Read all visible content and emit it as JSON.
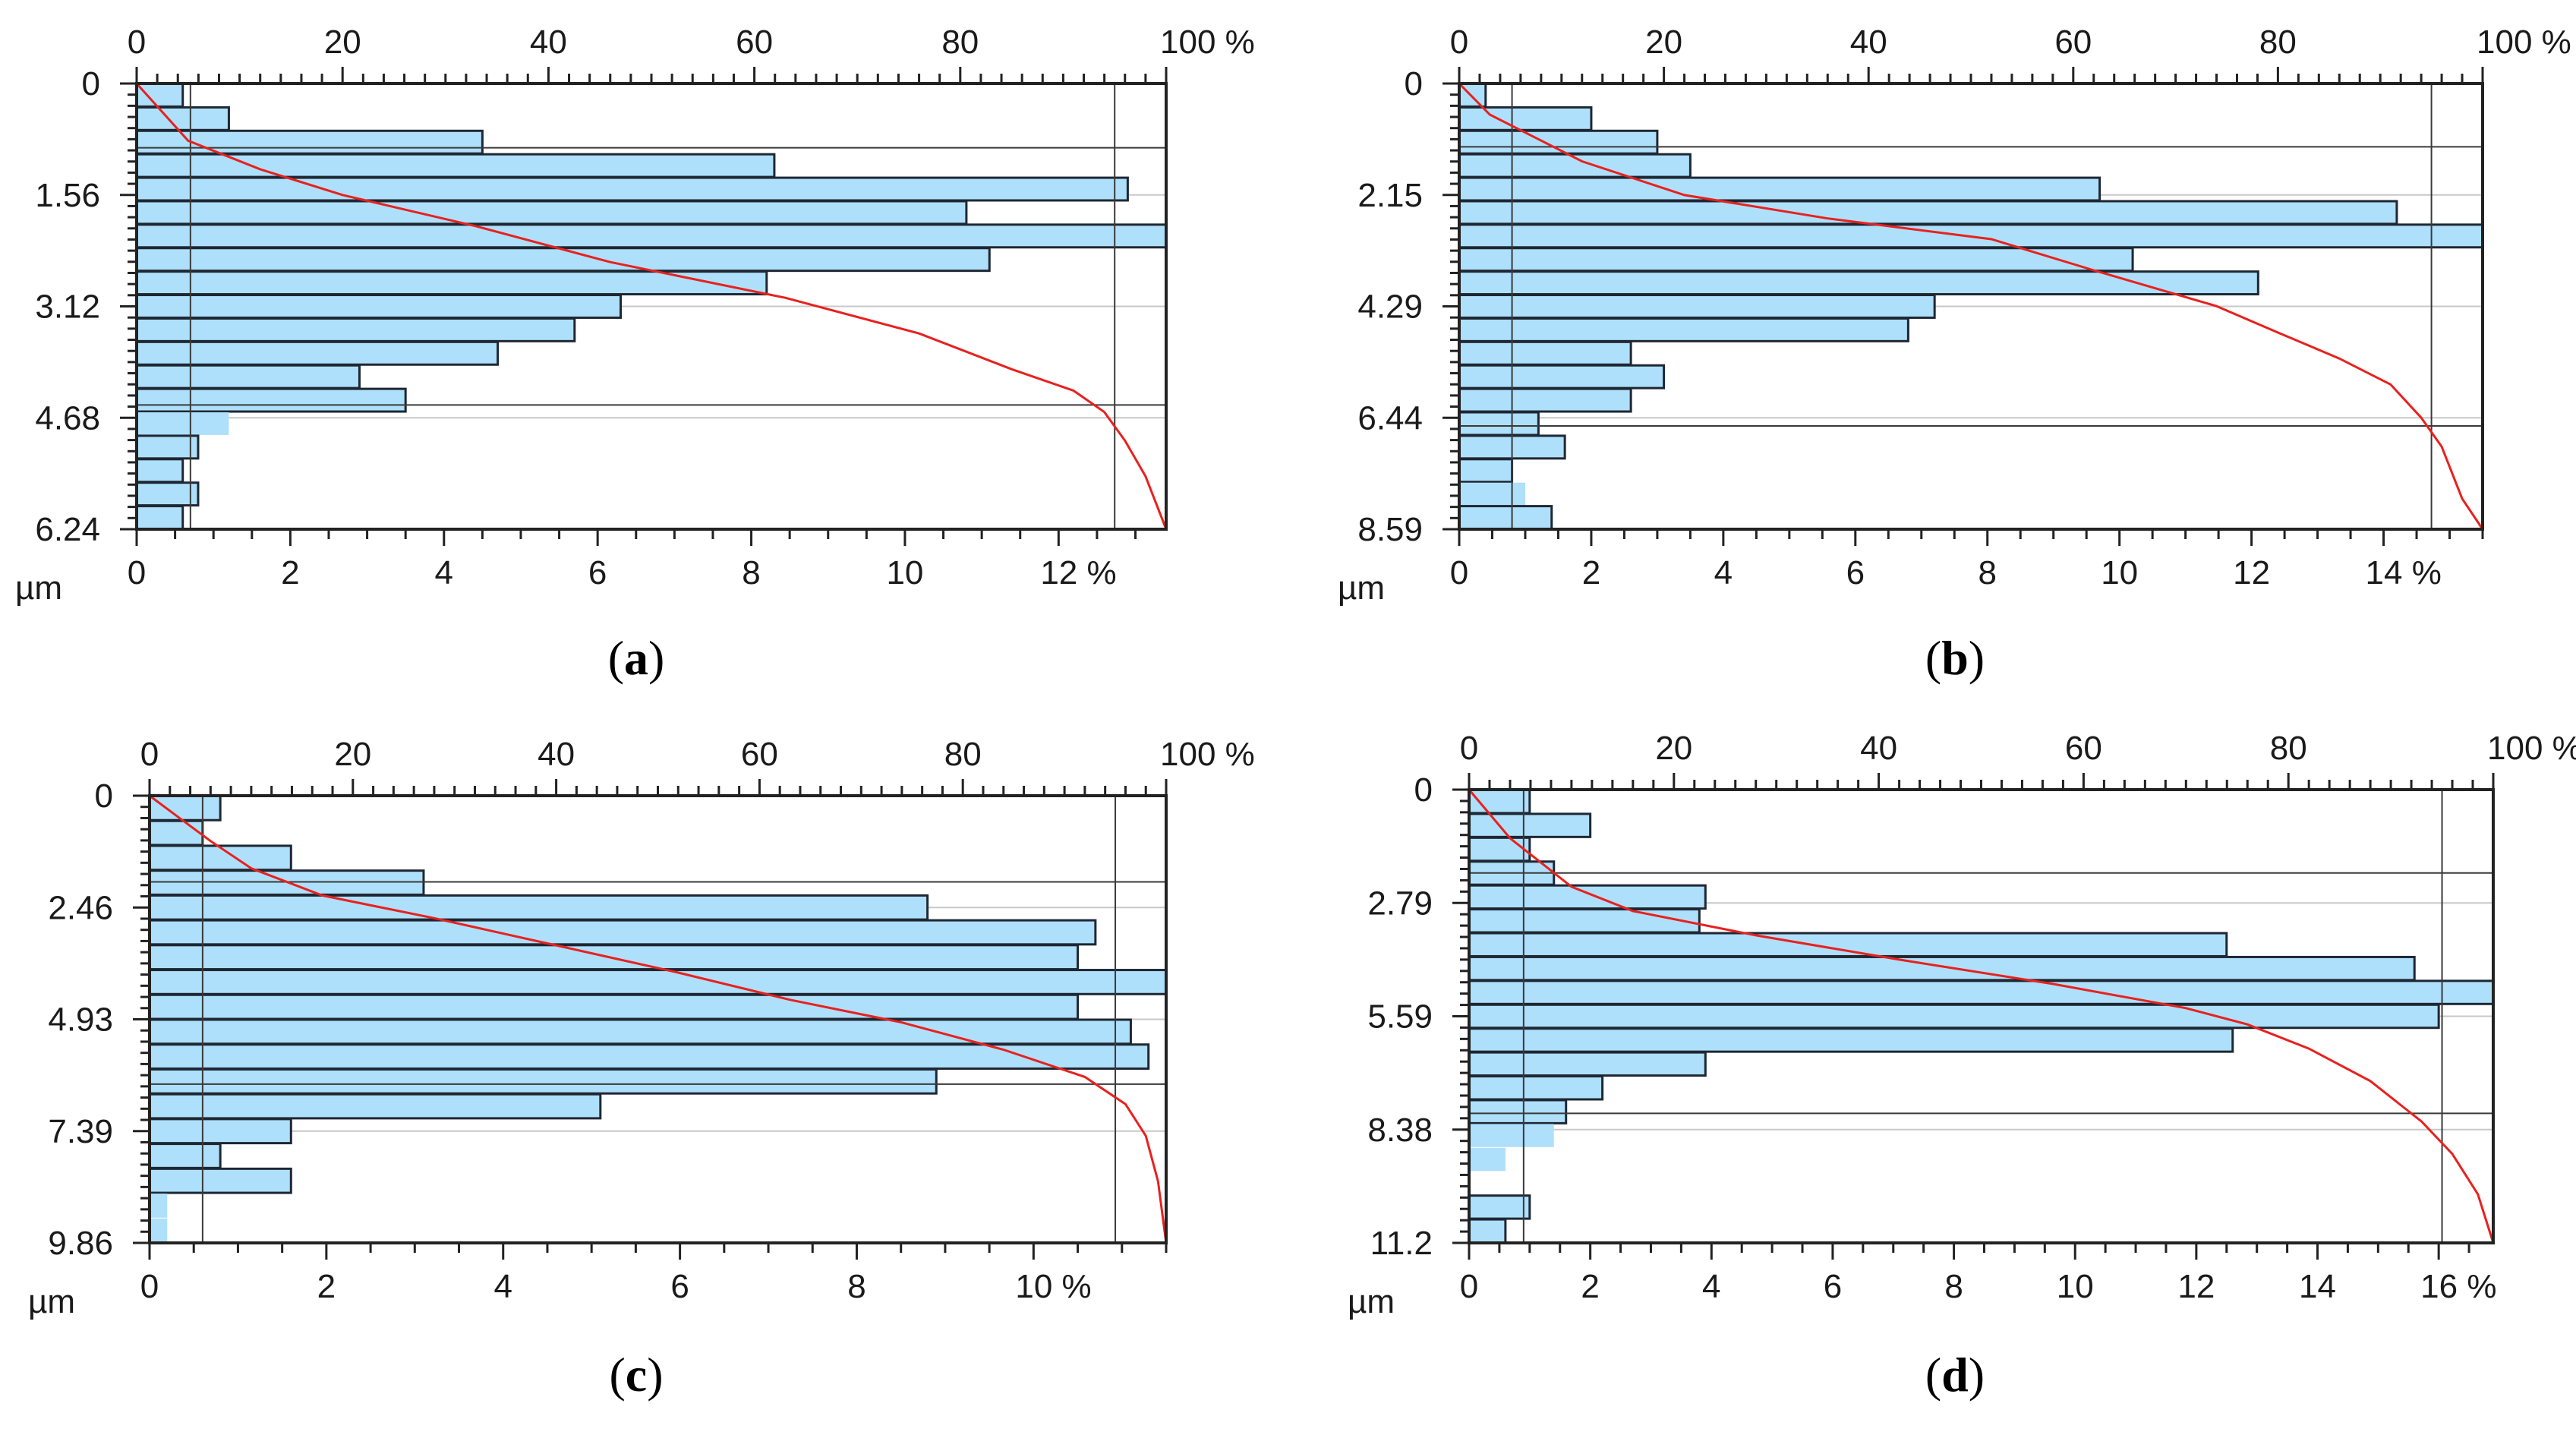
{
  "colors": {
    "bar_fill": "#aee0fb",
    "bar_stroke": "#1f2733",
    "curve": "#e8211e",
    "frame": "#222222",
    "grid": "#c8c8c8"
  },
  "chart_data": [
    {
      "caption_letter": "a",
      "type": "bar",
      "orientation": "horizontal",
      "y_unit": "µm",
      "y_ticks": [
        "0",
        "1.56",
        "3.12",
        "4.68",
        "6.24"
      ],
      "y_range": [
        0,
        6.24
      ],
      "x_tick_labels": [
        "0",
        "2",
        "4",
        "6",
        "8",
        "10",
        "12 %"
      ],
      "x_max": 13.4,
      "top_tick_labels": [
        "0",
        "20",
        "40",
        "60",
        "80",
        "100 %"
      ],
      "values": [
        0.6,
        1.2,
        4.5,
        8.3,
        12.9,
        10.8,
        13.4,
        11.1,
        8.2,
        6.3,
        5.7,
        4.7,
        2.9,
        3.5,
        1.2,
        0.8,
        0.6,
        0.8,
        0.6
      ],
      "light_bars": [
        14
      ],
      "h_lines": [
        0.9,
        4.5
      ],
      "v_line_bottom": 0.7,
      "v_line_top_pct": 95,
      "cumulative": [
        [
          0,
          0
        ],
        [
          0.8,
          5
        ],
        [
          1.2,
          12
        ],
        [
          1.56,
          20
        ],
        [
          2.0,
          33
        ],
        [
          2.5,
          46
        ],
        [
          3.0,
          63
        ],
        [
          3.5,
          76
        ],
        [
          4.0,
          85
        ],
        [
          4.3,
          91
        ],
        [
          4.6,
          94
        ],
        [
          5.0,
          96
        ],
        [
          5.5,
          98
        ],
        [
          6.24,
          100
        ]
      ]
    },
    {
      "caption_letter": "b",
      "type": "bar",
      "orientation": "horizontal",
      "y_unit": "µm",
      "y_ticks": [
        "0",
        "2.15",
        "4.29",
        "6.44",
        "8.59"
      ],
      "y_range": [
        0,
        8.59
      ],
      "x_tick_labels": [
        "0",
        "2",
        "4",
        "6",
        "8",
        "10",
        "12",
        "14 %"
      ],
      "x_max": 15.5,
      "top_tick_labels": [
        "0",
        "20",
        "40",
        "60",
        "80",
        "100 %"
      ],
      "values": [
        0.4,
        2.0,
        3.0,
        3.5,
        9.7,
        14.2,
        15.5,
        10.2,
        12.1,
        7.2,
        6.8,
        2.6,
        3.1,
        2.6,
        1.2,
        1.6,
        0.8,
        1.0,
        1.4
      ],
      "light_bars": [
        17
      ],
      "h_lines": [
        1.22,
        6.6
      ],
      "v_line_bottom": 0.8,
      "v_line_top_pct": 95,
      "cumulative": [
        [
          0,
          0
        ],
        [
          0.6,
          3
        ],
        [
          1.0,
          7
        ],
        [
          1.5,
          12
        ],
        [
          2.15,
          22
        ],
        [
          2.6,
          36
        ],
        [
          3.0,
          52
        ],
        [
          3.6,
          62
        ],
        [
          4.29,
          74
        ],
        [
          4.8,
          80
        ],
        [
          5.3,
          86
        ],
        [
          5.8,
          91
        ],
        [
          6.44,
          94
        ],
        [
          7.0,
          96
        ],
        [
          8.0,
          98
        ],
        [
          8.59,
          100
        ]
      ]
    },
    {
      "caption_letter": "c",
      "type": "bar",
      "orientation": "horizontal",
      "y_unit": "µm",
      "y_ticks": [
        "0",
        "2.46",
        "4.93",
        "7.39",
        "9.86"
      ],
      "y_range": [
        0,
        9.86
      ],
      "x_tick_labels": [
        "0",
        "2",
        "4",
        "6",
        "8",
        "10 %"
      ],
      "x_max": 11.5,
      "top_tick_labels": [
        "0",
        "20",
        "40",
        "60",
        "80",
        "100 %"
      ],
      "values": [
        0.8,
        0.6,
        1.6,
        3.1,
        8.8,
        10.7,
        10.5,
        11.5,
        10.5,
        11.1,
        11.3,
        8.9,
        5.1,
        1.6,
        0.8,
        1.6,
        0.2,
        0.2
      ],
      "light_bars": [
        16,
        17
      ],
      "h_lines": [
        1.9,
        6.36
      ],
      "v_line_bottom": 0.6,
      "v_line_top_pct": 95,
      "cumulative": [
        [
          0,
          0
        ],
        [
          0.5,
          3
        ],
        [
          1.0,
          6
        ],
        [
          1.6,
          10
        ],
        [
          2.2,
          17
        ],
        [
          2.7,
          28
        ],
        [
          3.3,
          40
        ],
        [
          3.9,
          52
        ],
        [
          4.5,
          63
        ],
        [
          5.0,
          74
        ],
        [
          5.6,
          84
        ],
        [
          6.2,
          92
        ],
        [
          6.8,
          96
        ],
        [
          7.5,
          98
        ],
        [
          8.5,
          99.2
        ],
        [
          9.86,
          100
        ]
      ]
    },
    {
      "caption_letter": "d",
      "type": "bar",
      "orientation": "horizontal",
      "y_unit": "µm",
      "y_ticks": [
        "0",
        "2.79",
        "5.59",
        "8.38",
        "11.2"
      ],
      "y_range": [
        0,
        11.2
      ],
      "x_tick_labels": [
        "0",
        "2",
        "4",
        "6",
        "8",
        "10",
        "12",
        "14",
        "16 %"
      ],
      "x_max": 16.9,
      "top_tick_labels": [
        "0",
        "20",
        "40",
        "60",
        "80",
        "100 %"
      ],
      "values": [
        1.0,
        2.0,
        1.0,
        1.4,
        3.9,
        3.8,
        12.5,
        15.6,
        16.9,
        16.0,
        12.6,
        3.9,
        2.2,
        1.6,
        1.4,
        0.6,
        0.0,
        1.0,
        0.6
      ],
      "light_bars": [
        14,
        15
      ],
      "h_lines": [
        2.06,
        8.0
      ],
      "v_line_bottom": 0.9,
      "v_line_top_pct": 95,
      "cumulative": [
        [
          0,
          0
        ],
        [
          0.6,
          2
        ],
        [
          1.2,
          4
        ],
        [
          1.8,
          7
        ],
        [
          2.4,
          10
        ],
        [
          3.0,
          16
        ],
        [
          3.6,
          28
        ],
        [
          4.2,
          42
        ],
        [
          4.8,
          57
        ],
        [
          5.4,
          70
        ],
        [
          5.8,
          76
        ],
        [
          6.4,
          82
        ],
        [
          7.2,
          88
        ],
        [
          8.2,
          93
        ],
        [
          9.0,
          96
        ],
        [
          10.0,
          98.5
        ],
        [
          11.2,
          100
        ]
      ]
    }
  ]
}
